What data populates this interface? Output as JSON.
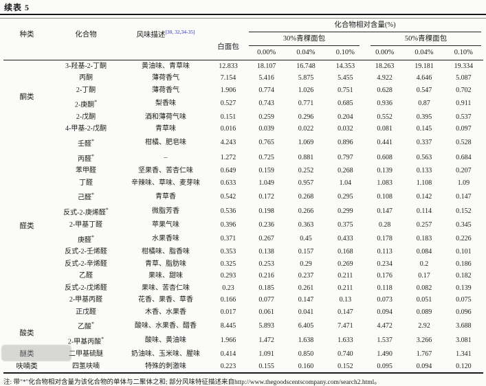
{
  "title": "续表 5",
  "colors": {
    "citation_blue": "#2929cc"
  },
  "table": {
    "col_headers": {
      "type": "种类",
      "compound": "化合物",
      "flavor": "风味描述",
      "flavor_superscript": "[30, 32,34-35]",
      "white_bread": "白面包",
      "relative_content": "化合物相对含量(%)",
      "group30": "30%青稞面包",
      "group50": "50%青稞面包",
      "sub30": [
        "0.00%",
        "0.04%",
        "0.10%"
      ],
      "sub50": [
        "0.00%",
        "0.04%",
        "0.10%"
      ]
    },
    "groups": [
      {
        "label": "酮类",
        "span": 6
      },
      {
        "label": "醛类",
        "span": 14
      },
      {
        "label": "酸类",
        "span": 2
      },
      {
        "label": "醚类",
        "span": 1
      },
      {
        "label": "呋喃类",
        "span": 1
      }
    ],
    "rows": [
      {
        "compound": "3-羟基-2-丁酮",
        "flavor": "黄油味、青草味",
        "values": [
          "12.833",
          "18.107",
          "16.748",
          "14.353",
          "18.263",
          "19.181",
          "19.334"
        ]
      },
      {
        "compound": "丙酮",
        "flavor": "薄荷香气",
        "values": [
          "7.154",
          "5.416",
          "5.875",
          "5.455",
          "4.922",
          "4.646",
          "5.087"
        ]
      },
      {
        "compound": "2-丁酮",
        "flavor": "薄荷香气",
        "values": [
          "1.906",
          "0.774",
          "1.026",
          "0.751",
          "0.628",
          "0.547",
          "0.702"
        ]
      },
      {
        "compound": "2-庚酮*",
        "flavor": "梨香味",
        "values": [
          "0.527",
          "0.743",
          "0.771",
          "0.685",
          "0.936",
          "0.87",
          "0.911"
        ]
      },
      {
        "compound": "2-戊酮",
        "flavor": "酒和薄荷气味",
        "values": [
          "0.151",
          "0.259",
          "0.296",
          "0.204",
          "0.552",
          "0.395",
          "0.537"
        ]
      },
      {
        "compound": "4-甲基-2-戊酮",
        "flavor": "青草味",
        "values": [
          "0.016",
          "0.039",
          "0.022",
          "0.032",
          "0.081",
          "0.145",
          "0.097"
        ]
      },
      {
        "compound": "壬醛*",
        "flavor": "柑橘、肥皂味",
        "values": [
          "4.243",
          "0.765",
          "1.069",
          "0.896",
          "0.441",
          "0.337",
          "0.528"
        ]
      },
      {
        "compound": "丙醛*",
        "flavor": "–",
        "values": [
          "1.272",
          "0.725",
          "0.881",
          "0.797",
          "0.608",
          "0.563",
          "0.684"
        ]
      },
      {
        "compound": "苯甲醛",
        "flavor": "坚果香、苦杏仁味",
        "values": [
          "0.649",
          "0.159",
          "0.252",
          "0.268",
          "0.139",
          "0.133",
          "0.207"
        ]
      },
      {
        "compound": "丁醛",
        "flavor": "辛辣味、草味、麦芽味",
        "values": [
          "0.633",
          "1.049",
          "0.957",
          "1.04",
          "1.083",
          "1.108",
          "1.09"
        ]
      },
      {
        "compound": "己醛*",
        "flavor": "青草香",
        "values": [
          "0.542",
          "0.172",
          "0.268",
          "0.295",
          "0.108",
          "0.142",
          "0.147"
        ]
      },
      {
        "compound": "反式-2-庚烯醛*",
        "flavor": "微脂芳香",
        "values": [
          "0.536",
          "0.198",
          "0.266",
          "0.299",
          "0.147",
          "0.114",
          "0.152"
        ]
      },
      {
        "compound": "2-甲基丁醛",
        "flavor": "苹果气味",
        "values": [
          "0.396",
          "0.236",
          "0.363",
          "0.375",
          "0.28",
          "0.257",
          "0.345"
        ]
      },
      {
        "compound": "庚醛*",
        "flavor": "水果香味",
        "values": [
          "0.371",
          "0.267",
          "0.45",
          "0.433",
          "0.178",
          "0.183",
          "0.226"
        ]
      },
      {
        "compound": "反式-2-壬烯醛",
        "flavor": "柑橘味、脂香味",
        "values": [
          "0.353",
          "0.138",
          "0.157",
          "0.168",
          "0.113",
          "0.084",
          "0.101"
        ]
      },
      {
        "compound": "反式-2-辛烯醛",
        "flavor": "青草、脂肪味",
        "values": [
          "0.325",
          "0.253",
          "0.29",
          "0.269",
          "0.234",
          "0.2",
          "0.186"
        ]
      },
      {
        "compound": "乙醛",
        "flavor": "果味、甜味",
        "values": [
          "0.293",
          "0.216",
          "0.237",
          "0.211",
          "0.176",
          "0.17",
          "0.182"
        ]
      },
      {
        "compound": "反式-2-戊烯醛",
        "flavor": "果味、苦杏仁味",
        "values": [
          "0.23",
          "0.185",
          "0.261",
          "0.211",
          "0.118",
          "0.082",
          "0.139"
        ]
      },
      {
        "compound": "2-甲基丙醛",
        "flavor": "花香、果香、草香",
        "values": [
          "0.166",
          "0.077",
          "0.147",
          "0.13",
          "0.073",
          "0.051",
          "0.075"
        ]
      },
      {
        "compound": "正戊醛",
        "flavor": "木香、水果香",
        "values": [
          "0.017",
          "0.061",
          "0.041",
          "0.147",
          "0.094",
          "0.089",
          "0.096"
        ]
      },
      {
        "compound": "乙酸*",
        "flavor": "酸味、水果香、醋香",
        "values": [
          "8.445",
          "5.893",
          "6.405",
          "7.471",
          "4.472",
          "2.92",
          "3.688"
        ]
      },
      {
        "compound": "2-甲基丙酸*",
        "flavor": "酸味、黄油味",
        "values": [
          "1.966",
          "1.472",
          "1.638",
          "1.633",
          "1.537",
          "3.266",
          "3.081"
        ]
      },
      {
        "compound": "二甲基硫醚",
        "flavor": "奶油味、玉米味、腥味",
        "values": [
          "0.414",
          "1.091",
          "0.850",
          "0.740",
          "1.490",
          "1.767",
          "1.341"
        ]
      },
      {
        "compound": "四氢呋喃",
        "flavor": "特殊的刺激味",
        "values": [
          "0.223",
          "0.155",
          "0.160",
          "0.152",
          "0.095",
          "0.094",
          "0.120"
        ]
      }
    ]
  },
  "footnote": "注: 带\"*\"化合物相对含量为该化合物的单体与二聚体之和; 部分风味特征描述来自http://www.thegoodscentscompany.com/search2.html。"
}
